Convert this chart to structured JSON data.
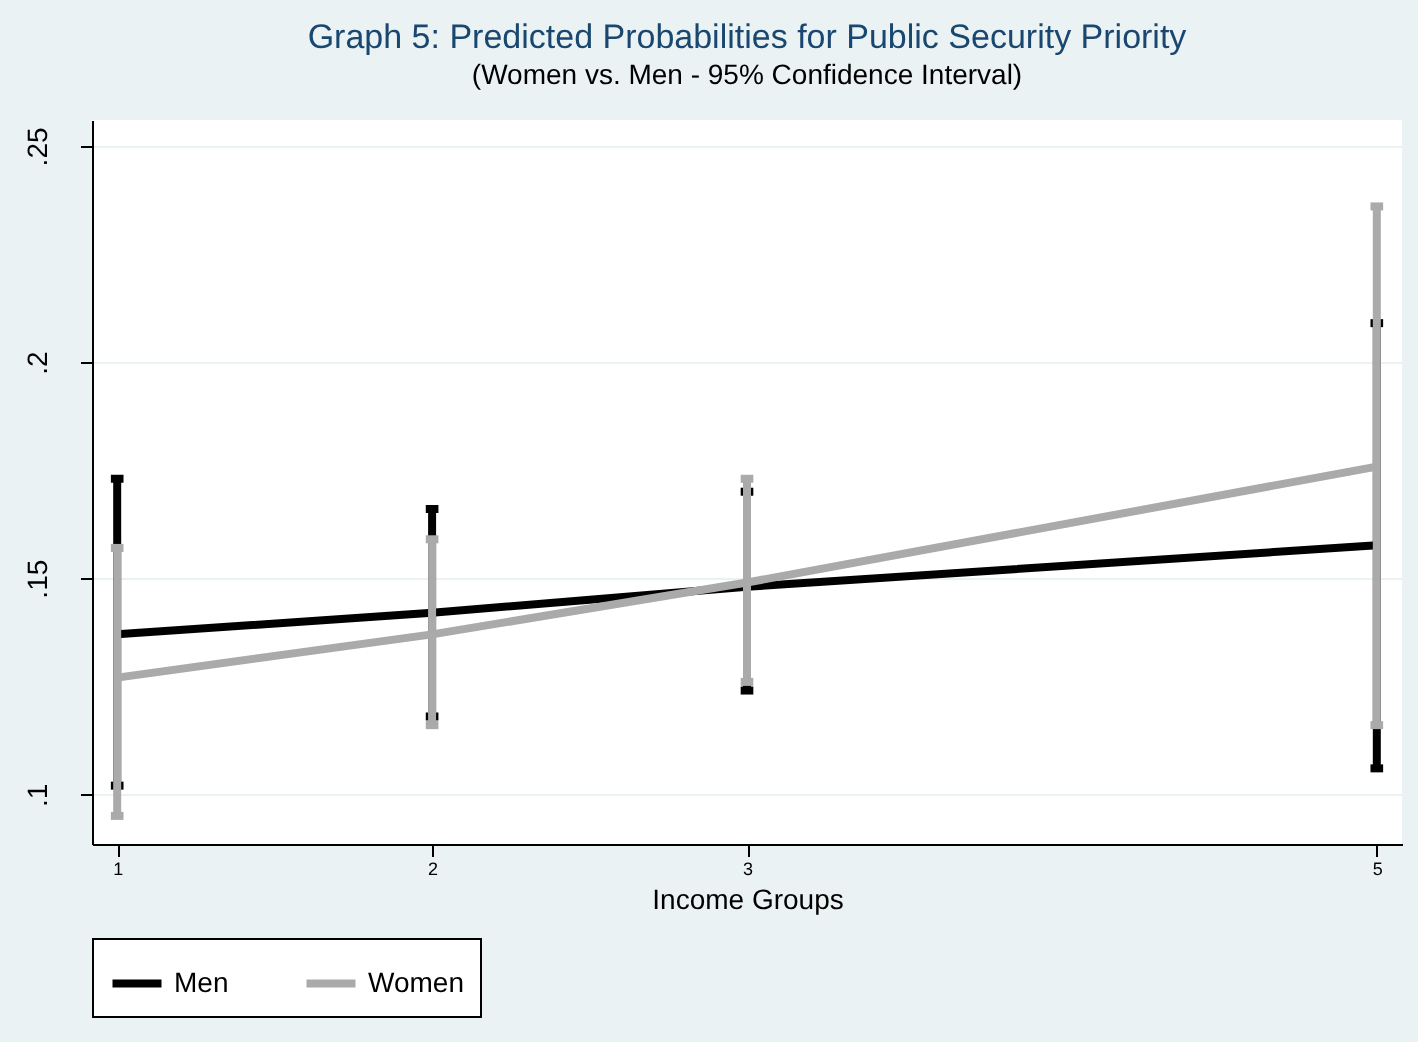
{
  "chart_data": {
    "type": "line",
    "title": "Graph 5: Predicted Probabilities for Public Security Priority",
    "subtitle": "(Women vs. Men - 95% Confidence Interval)",
    "xlabel": "Income Groups",
    "x": [
      1,
      2,
      3,
      5
    ],
    "series": [
      {
        "name": "Men",
        "color": "#000000",
        "values": [
          0.137,
          0.142,
          0.148,
          0.1576
        ],
        "errors": [
          [
            0.102,
            0.173
          ],
          [
            0.118,
            0.166
          ],
          [
            0.124,
            0.17
          ],
          [
            0.106,
            0.209
          ]
        ]
      },
      {
        "name": "Women",
        "color": "#aaaaaa",
        "values": [
          0.127,
          0.137,
          0.149,
          0.1758
        ],
        "errors": [
          [
            0.095,
            0.157
          ],
          [
            0.116,
            0.159
          ],
          [
            0.126,
            0.173
          ],
          [
            0.116,
            0.236
          ]
        ]
      }
    ],
    "xlim": [
      0.92,
      5.08
    ],
    "xticks": [
      1,
      2,
      3,
      5
    ],
    "ylim": [
      0.0885,
      0.256
    ],
    "yticks": [
      {
        "value": 0.1,
        "label": ".1"
      },
      {
        "value": 0.15,
        "label": ".15"
      },
      {
        "value": 0.2,
        "label": ".2"
      },
      {
        "value": 0.25,
        "label": ".25"
      }
    ],
    "grid": "y",
    "legend": "bottom",
    "marker": "none",
    "line_style": "solid"
  }
}
